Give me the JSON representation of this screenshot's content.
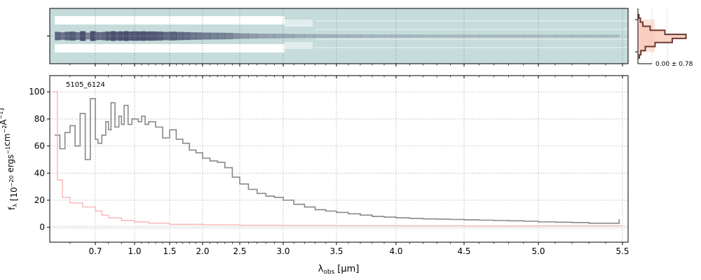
{
  "chart_data": [
    {
      "panel": "2d-spectrum",
      "type": "heatmap",
      "colors": {
        "background": "#c5dcdb",
        "emission": "#3b3f63",
        "mask": "#ffffff"
      },
      "grid": true
    },
    {
      "panel": "spatial-profile",
      "type": "area",
      "annotation": "0.00 ± 0.78",
      "colors": {
        "profile": "#6b3a2e",
        "fill": "#f8c9b9",
        "band": "#fde2d8"
      },
      "profile": [
        0.02,
        0.05,
        0.1,
        0.25,
        0.55,
        0.98,
        0.7,
        0.35,
        0.15,
        0.06,
        0.03
      ]
    },
    {
      "panel": "1d-spectrum",
      "type": "line",
      "label": "5105_6124",
      "xlabel_main": "λ",
      "xlabel_sub": "obs",
      "xlabel_unit": "[μm]",
      "ylabel": "f_λ [10^-20 ergs^-1cm^-2Å^-1]",
      "xticks": [
        0.7,
        1.0,
        1.5,
        2.0,
        2.5,
        3.0,
        3.5,
        4.0,
        4.5,
        5.0,
        5.5
      ],
      "xtick_labels": [
        "0.7",
        "1.0",
        "1.5",
        "2.0",
        "2.5",
        "3.0",
        "3.5",
        "4.0",
        "4.5",
        "5.0",
        "5.5"
      ],
      "yticks": [
        0,
        20,
        40,
        60,
        80,
        100
      ],
      "ytick_labels": [
        "0",
        "20",
        "40",
        "60",
        "80",
        "100"
      ],
      "xlim": [
        0.52,
        5.52
      ],
      "ylim": [
        -11,
        112
      ],
      "grid": true,
      "series": [
        {
          "role": "flux",
          "color": "#888888",
          "x": [
            0.54,
            0.56,
            0.58,
            0.6,
            0.62,
            0.64,
            0.66,
            0.68,
            0.7,
            0.72,
            0.75,
            0.78,
            0.8,
            0.82,
            0.85,
            0.88,
            0.9,
            0.92,
            0.95,
            0.98,
            1.0,
            1.05,
            1.1,
            1.15,
            1.2,
            1.3,
            1.4,
            1.5,
            1.6,
            1.7,
            1.8,
            1.9,
            2.0,
            2.1,
            2.2,
            2.3,
            2.4,
            2.5,
            2.6,
            2.7,
            2.8,
            2.9,
            3.0,
            3.1,
            3.2,
            3.3,
            3.4,
            3.5,
            3.6,
            3.7,
            3.8,
            3.9,
            4.0,
            4.1,
            4.2,
            4.3,
            4.4,
            4.5,
            4.6,
            4.7,
            4.8,
            4.9,
            5.0,
            5.1,
            5.2,
            5.3,
            5.4,
            5.48
          ],
          "y": [
            68,
            58,
            70,
            75,
            60,
            84,
            50,
            95,
            65,
            62,
            68,
            78,
            72,
            92,
            74,
            82,
            76,
            90,
            76,
            80,
            80,
            78,
            82,
            76,
            78,
            74,
            66,
            72,
            65,
            62,
            57,
            55,
            51,
            49,
            48,
            44,
            37,
            32,
            28,
            25,
            23,
            22,
            20,
            17,
            15,
            13,
            12,
            11,
            10,
            9,
            8,
            7.5,
            7,
            6.5,
            6.2,
            6,
            5.8,
            5.5,
            5.3,
            5,
            4.8,
            4.5,
            4,
            3.8,
            3.5,
            3,
            3,
            6
          ]
        },
        {
          "role": "uncertainty",
          "color": "#f6b6b8",
          "x": [
            0.53,
            0.55,
            0.57,
            0.6,
            0.65,
            0.7,
            0.75,
            0.8,
            0.9,
            1.0,
            1.2,
            1.5,
            2.0,
            2.5,
            3.0,
            3.5,
            4.0,
            4.5,
            5.0,
            5.5
          ],
          "y": [
            100,
            35,
            22,
            18,
            15,
            12,
            9,
            7,
            5,
            4,
            3,
            2.2,
            1.8,
            1.5,
            1.3,
            1.2,
            1.1,
            1.0,
            1.1,
            1.3
          ]
        }
      ]
    }
  ]
}
